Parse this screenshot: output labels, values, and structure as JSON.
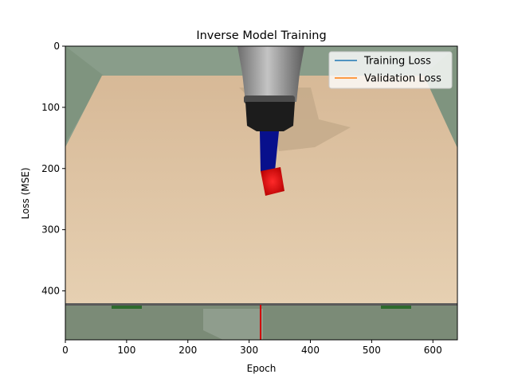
{
  "chart_data": {
    "type": "line",
    "title": "Inverse Model Training",
    "xlabel": "Epoch",
    "ylabel": "Loss (MSE)",
    "xlim": [
      0,
      640
    ],
    "ylim": [
      480,
      0
    ],
    "y_axis_inverted": true,
    "x_ticks": [
      0,
      100,
      200,
      300,
      400,
      500,
      600
    ],
    "y_ticks": [
      0,
      100,
      200,
      300,
      400
    ],
    "x_tick_labels": [
      "0",
      "100",
      "200",
      "300",
      "400",
      "500",
      "600"
    ],
    "y_tick_labels": [
      "0",
      "100",
      "200",
      "300",
      "400"
    ],
    "legend_position": "top-right",
    "series": [
      {
        "name": "Training Loss",
        "color": "#1f77b4",
        "x": [],
        "y": []
      },
      {
        "name": "Validation Loss",
        "color": "#ff7f0e",
        "x": [],
        "y": []
      }
    ],
    "background_image": {
      "description_icon": "robot-arm-camera-frame",
      "colors": {
        "wall": "#8a9e8c",
        "table_top": "#dcc3a0",
        "table_front": "#7c8c78",
        "gripper": "#8a8a8a",
        "gripper_base": "#222222",
        "arm": "#0a0f8c",
        "cube": "#e00000"
      }
    }
  }
}
